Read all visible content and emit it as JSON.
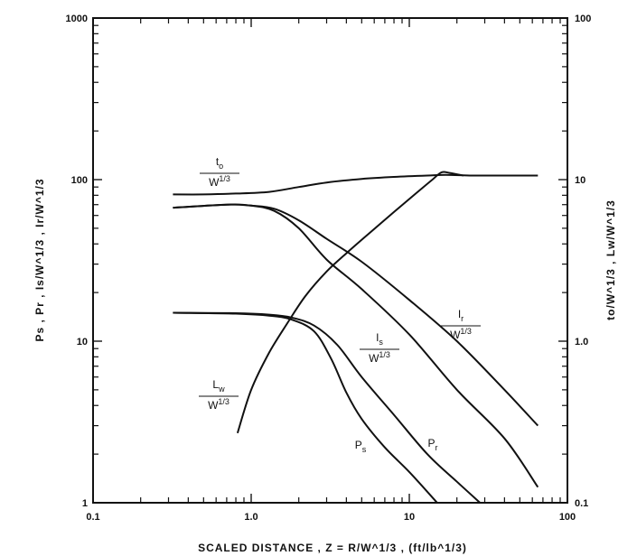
{
  "chart_data": {
    "type": "line",
    "x_scale": "log",
    "y_scale": "log",
    "y2_scale": "log",
    "xlim": [
      0.1,
      100
    ],
    "ylim": [
      1,
      1000
    ],
    "y2lim": [
      0.1,
      100
    ],
    "grid": false,
    "xlabel": "SCALED DISTANCE , Z = R/W^1/3 , (ft/lb^1/3)",
    "ylabel_left": "Ps , Pr , Is/W^1/3 , Ir/W^1/3",
    "ylabel_right": "to/W^1/3 , Lw/W^1/3",
    "x_ticks": [
      {
        "value": 0.1,
        "label": "0.1"
      },
      {
        "value": 1,
        "label": "1.0"
      },
      {
        "value": 10,
        "label": "10"
      },
      {
        "value": 100,
        "label": "100"
      }
    ],
    "y_ticks": [
      {
        "value": 1,
        "label": "1"
      },
      {
        "value": 10,
        "label": "10"
      },
      {
        "value": 100,
        "label": "100"
      },
      {
        "value": 1000,
        "label": "1000"
      }
    ],
    "y2_ticks": [
      {
        "value": 0.1,
        "label": "0.1"
      },
      {
        "value": 1,
        "label": "1.0"
      },
      {
        "value": 10,
        "label": "10"
      },
      {
        "value": 100,
        "label": "100"
      }
    ],
    "series": [
      {
        "name": "to/W^1/3",
        "axis": "right",
        "label_main": "t",
        "label_sub": "o",
        "label_den": "W^1/3",
        "points": [
          [
            0.32,
            8.1
          ],
          [
            0.5,
            8.1
          ],
          [
            0.8,
            8.2
          ],
          [
            1.3,
            8.4
          ],
          [
            2,
            9.0
          ],
          [
            3,
            9.6
          ],
          [
            5,
            10.1
          ],
          [
            8,
            10.4
          ],
          [
            13,
            10.6
          ],
          [
            17,
            10.7
          ],
          [
            25,
            10.6
          ],
          [
            40,
            10.6
          ],
          [
            65,
            10.6
          ]
        ]
      },
      {
        "name": "Lw/W^1/3",
        "axis": "right",
        "label_main": "L",
        "label_sub": "w",
        "label_den": "W^1/3",
        "points": [
          [
            0.82,
            0.27
          ],
          [
            1.0,
            0.5
          ],
          [
            1.3,
            0.85
          ],
          [
            1.7,
            1.3
          ],
          [
            2.2,
            1.9
          ],
          [
            3,
            2.7
          ],
          [
            4,
            3.5
          ],
          [
            5.5,
            4.6
          ],
          [
            8,
            6.3
          ],
          [
            11,
            8.2
          ],
          [
            14,
            10
          ],
          [
            16,
            11.1
          ],
          [
            18,
            11
          ],
          [
            22,
            10.6
          ]
        ]
      },
      {
        "name": "Ir/W^1/3",
        "axis": "left",
        "label_main": "I",
        "label_sub": "r",
        "label_den": "W^1/3",
        "points": [
          [
            0.32,
            67
          ],
          [
            0.7,
            70
          ],
          [
            1.0,
            69
          ],
          [
            1.4,
            66
          ],
          [
            2,
            56
          ],
          [
            3,
            43
          ],
          [
            5,
            31
          ],
          [
            10,
            18
          ],
          [
            20,
            10
          ],
          [
            40,
            5
          ],
          [
            65,
            3
          ]
        ]
      },
      {
        "name": "Is/W^1/3",
        "axis": "left",
        "label_main": "I",
        "label_sub": "s",
        "label_den": "W^1/3",
        "points": [
          [
            0.32,
            67
          ],
          [
            0.7,
            70
          ],
          [
            1.0,
            69
          ],
          [
            1.4,
            64
          ],
          [
            2,
            50
          ],
          [
            3,
            32
          ],
          [
            5,
            21
          ],
          [
            10,
            11
          ],
          [
            20,
            5
          ],
          [
            40,
            2.5
          ],
          [
            65,
            1.25
          ]
        ]
      },
      {
        "name": "Pr",
        "axis": "left",
        "label_main": "P",
        "label_sub": "r",
        "label_den": "",
        "points": [
          [
            0.32,
            15
          ],
          [
            0.8,
            14.9
          ],
          [
            1.3,
            14.6
          ],
          [
            1.8,
            14
          ],
          [
            2.5,
            12.5
          ],
          [
            3.5,
            9.5
          ],
          [
            5,
            6
          ],
          [
            8,
            3.5
          ],
          [
            13,
            2
          ],
          [
            20,
            1.35
          ],
          [
            28,
            1
          ]
        ]
      },
      {
        "name": "Ps",
        "axis": "left",
        "label_main": "P",
        "label_sub": "s",
        "label_den": "",
        "points": [
          [
            0.32,
            15
          ],
          [
            0.8,
            14.8
          ],
          [
            1.3,
            14.4
          ],
          [
            1.8,
            13.6
          ],
          [
            2.5,
            11.5
          ],
          [
            3.2,
            7.8
          ],
          [
            4,
            4.8
          ],
          [
            5,
            3.3
          ],
          [
            7,
            2.2
          ],
          [
            10,
            1.55
          ],
          [
            15,
            1
          ]
        ]
      }
    ]
  }
}
